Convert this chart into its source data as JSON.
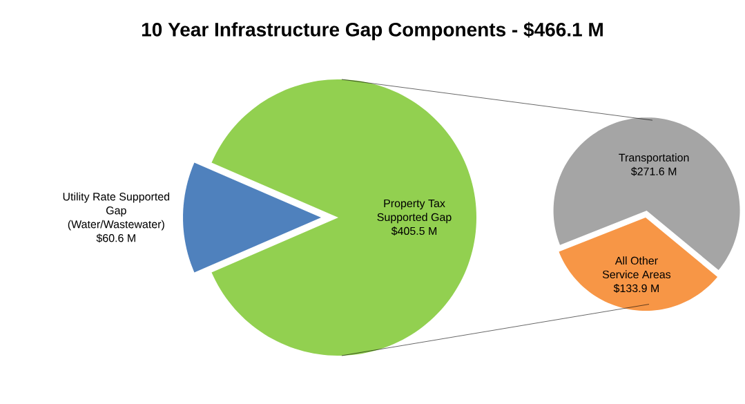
{
  "chart_data": [
    {
      "type": "pie",
      "title": "10 Year Infrastructure Gap Components - $466.1 M",
      "categories": [
        "Utility Rate Supported Gap (Water/Wastewater)",
        "Property Tax Supported Gap"
      ],
      "values": [
        60.6,
        405.5
      ],
      "value_labels": [
        "$60.6 M",
        "$405.5 M"
      ],
      "colors": [
        "#4f81bd",
        "#92d050"
      ]
    },
    {
      "type": "pie",
      "categories": [
        "Transportation",
        "All Other Service Areas"
      ],
      "values": [
        271.6,
        133.9
      ],
      "value_labels": [
        "$271.6 M",
        "$133.9 M"
      ],
      "colors": [
        "#a5a5a5",
        "#f79646"
      ]
    }
  ]
}
